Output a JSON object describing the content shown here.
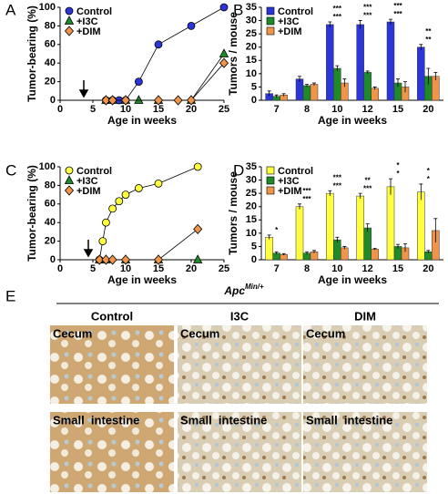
{
  "chart_data": [
    {
      "type": "line",
      "label": "A",
      "xlabel": "Age in weeks",
      "ylabel": "Tumor-bearing (%)",
      "xlim": [
        0,
        25
      ],
      "xticks": [
        0,
        5,
        10,
        15,
        20,
        25
      ],
      "ylim": [
        0,
        100
      ],
      "yticks": [
        0,
        20,
        40,
        60,
        80,
        100
      ],
      "legend": "upper left",
      "series": [
        {
          "name": "Control",
          "color": "#2b35d8",
          "marker": "circle",
          "x": [
            7,
            8,
            9,
            10,
            12,
            15,
            20,
            25
          ],
          "values": [
            0,
            0,
            0,
            0,
            20,
            60,
            80,
            100
          ]
        },
        {
          "name": "+I3C",
          "color": "#1f8a2a",
          "marker": "triangle",
          "x": [
            7,
            8,
            10,
            12,
            15,
            20,
            25
          ],
          "values": [
            0,
            0,
            0,
            0,
            0,
            0,
            50
          ]
        },
        {
          "name": "+DIM",
          "color": "#f0944a",
          "marker": "diamond",
          "x": [
            7,
            8,
            10,
            15,
            18,
            20,
            25
          ],
          "values": [
            0,
            0,
            0,
            0,
            0,
            0,
            40
          ]
        }
      ]
    },
    {
      "type": "bar",
      "label": "B",
      "xlabel": "Age in weeks",
      "ylabel": "Tumors / mouse",
      "categories": [
        "7",
        "8",
        "10",
        "12",
        "15",
        "20"
      ],
      "ylim": [
        0,
        35
      ],
      "yticks": [
        0,
        5,
        10,
        15,
        20,
        25,
        30,
        35
      ],
      "legend": "upper left",
      "series": [
        {
          "name": "Control",
          "color": "#2b35d8",
          "values": [
            2.5,
            8,
            28.5,
            28.5,
            29.5,
            20
          ],
          "errors": [
            1,
            1,
            1,
            1.5,
            1,
            1
          ]
        },
        {
          "name": "+I3C",
          "color": "#1f8a2a",
          "values": [
            1.5,
            5.5,
            12,
            10.5,
            6.5,
            9
          ],
          "errors": [
            0.5,
            0.5,
            1,
            0.5,
            1.5,
            3
          ]
        },
        {
          "name": "+DIM",
          "color": "#f0944a",
          "values": [
            2,
            6,
            6.5,
            4.5,
            5,
            9
          ],
          "errors": [
            0.5,
            0.5,
            1.5,
            0.5,
            2,
            1.5
          ]
        }
      ],
      "significance": [
        [],
        [],
        [
          "***",
          "***"
        ],
        [
          "***",
          "***"
        ],
        [
          "***",
          "***"
        ],
        [
          "**",
          "**"
        ]
      ]
    },
    {
      "type": "line",
      "label": "C",
      "xlabel": "Age in weeks",
      "ylabel": "Tumor-bearing (%)",
      "xlim": [
        0,
        25
      ],
      "xticks": [
        0,
        5,
        10,
        15,
        20,
        25
      ],
      "ylim": [
        0,
        100
      ],
      "yticks": [
        0,
        20,
        40,
        60,
        80,
        100
      ],
      "legend": "upper left",
      "series": [
        {
          "name": "Control",
          "color": "#ffff40",
          "marker": "circle",
          "x": [
            6,
            6.5,
            7,
            8,
            9,
            10,
            12,
            15,
            21
          ],
          "values": [
            0,
            20,
            40,
            55,
            63,
            70,
            77,
            82,
            100
          ]
        },
        {
          "name": "+I3C",
          "color": "#1f8a2a",
          "marker": "triangle",
          "x": [
            6,
            7,
            10,
            15,
            21
          ],
          "values": [
            0,
            0,
            0,
            0,
            0
          ]
        },
        {
          "name": "+DIM",
          "color": "#f0944a",
          "marker": "diamond",
          "x": [
            6,
            7,
            8,
            10,
            15,
            21
          ],
          "values": [
            0,
            0,
            0,
            0,
            0,
            33
          ]
        }
      ]
    },
    {
      "type": "bar",
      "label": "D",
      "xlabel": "Age in weeks",
      "ylabel": "Tumors / mouse",
      "categories": [
        "7",
        "8",
        "10",
        "12",
        "15",
        "20"
      ],
      "ylim": [
        0,
        35
      ],
      "yticks": [
        0,
        5,
        10,
        15,
        20,
        25,
        30,
        35
      ],
      "legend": "upper left",
      "series": [
        {
          "name": "Control",
          "color": "#ffff40",
          "values": [
            8.5,
            20,
            25,
            24,
            27.5,
            25.5
          ],
          "errors": [
            0.8,
            1,
            1,
            1,
            3,
            3
          ]
        },
        {
          "name": "+I3C",
          "color": "#1f8a2a",
          "values": [
            2.5,
            2.5,
            7.5,
            12,
            5,
            3
          ],
          "errors": [
            0.5,
            0.5,
            1,
            1.5,
            0.8,
            0.5
          ]
        },
        {
          "name": "+DIM",
          "color": "#f0944a",
          "values": [
            2,
            3,
            4.5,
            4,
            4.5,
            11
          ],
          "errors": [
            0.3,
            0.5,
            0.5,
            0.3,
            1.5,
            4.5
          ]
        }
      ],
      "significance": [
        [
          "*"
        ],
        [
          "***",
          "***"
        ],
        [
          "***",
          "***"
        ],
        [
          "***",
          "**"
        ],
        [
          "*",
          "*"
        ],
        [
          "*",
          "*"
        ]
      ]
    }
  ],
  "panel_e": {
    "label": "E",
    "title": "Apc",
    "title_sup": "Min/+",
    "columns": [
      "Control",
      "I3C",
      "DIM"
    ],
    "rows": [
      "Cecum",
      "Small  intestine"
    ]
  }
}
